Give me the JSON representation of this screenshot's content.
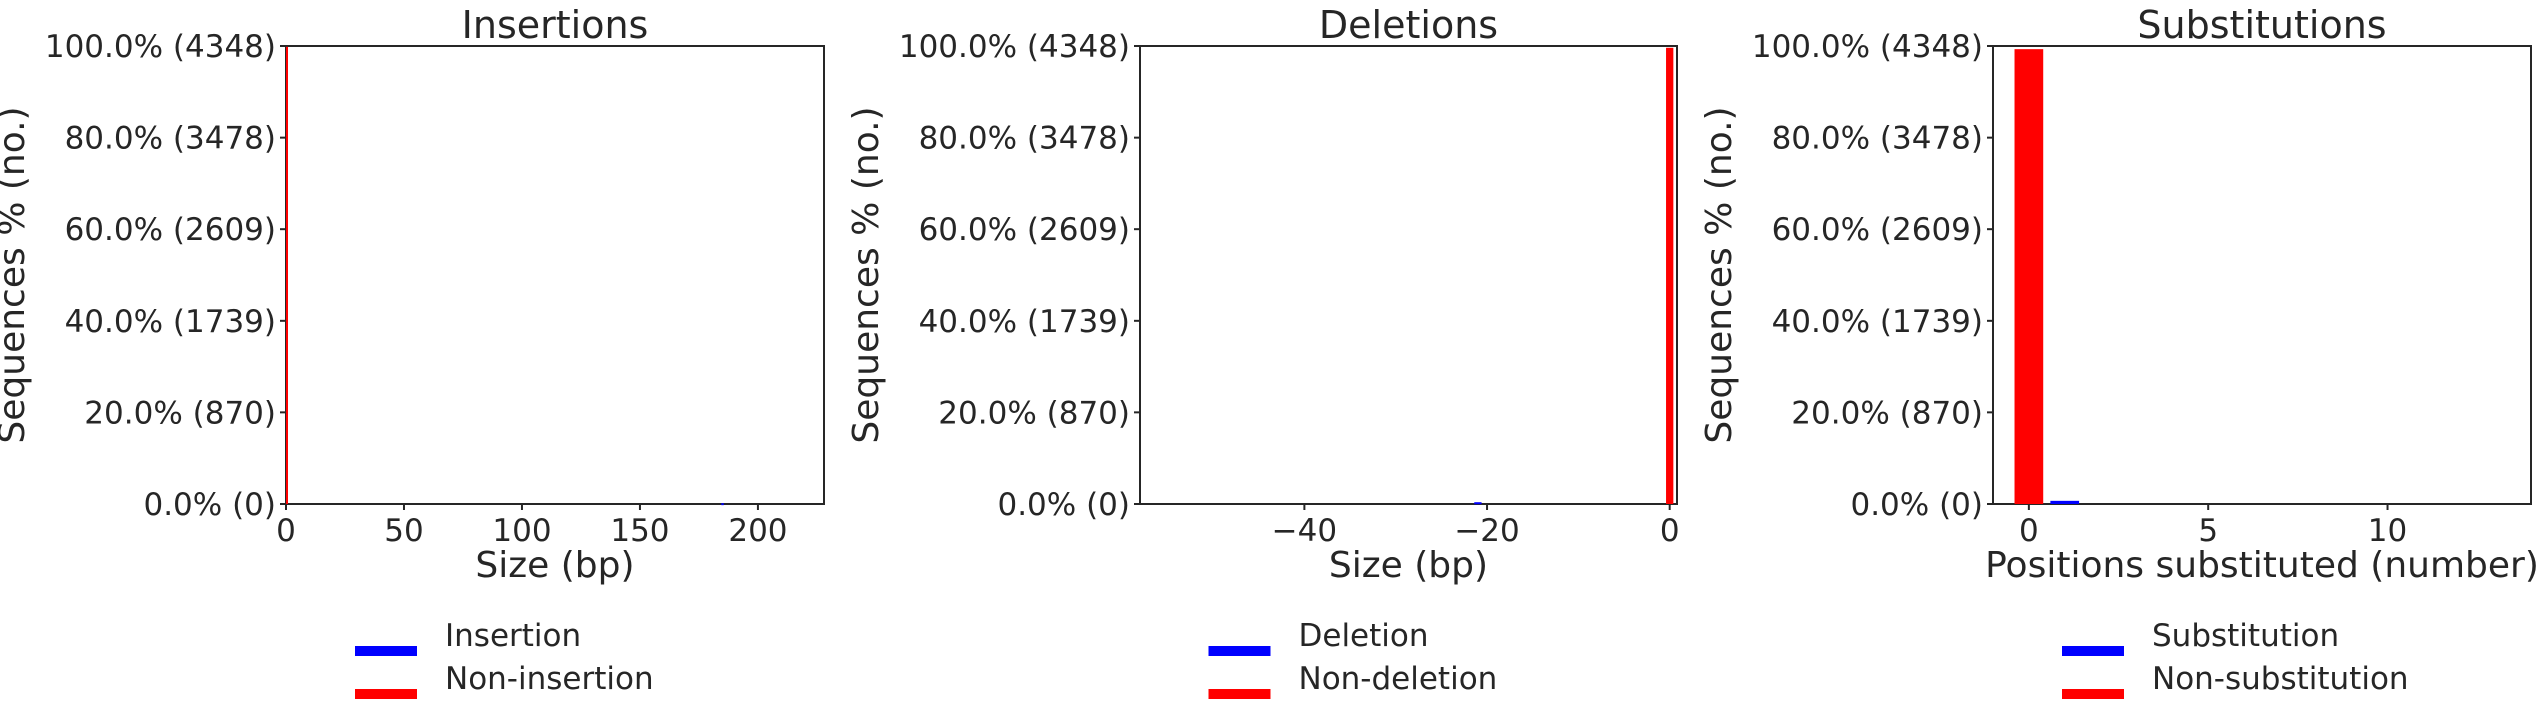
{
  "colors": {
    "event": "#0000ff",
    "non_event": "#ff0000",
    "axes": "#262626"
  },
  "chart_data": [
    {
      "type": "bar",
      "title": "Insertions",
      "xlabel": "Size (bp)",
      "ylabel": "Sequences % (no.)",
      "xlim": [
        0,
        228
      ],
      "ylim": [
        0,
        4348
      ],
      "xticks": [
        0,
        50,
        100,
        150,
        200
      ],
      "xtick_labels": [
        "0",
        "50",
        "100",
        "150",
        "200"
      ],
      "yticks": [
        0,
        870,
        1739,
        2609,
        3478,
        4348
      ],
      "ytick_labels": [
        "0.0% (0)",
        "20.0% (870)",
        "40.0% (1739)",
        "60.0% (2609)",
        "80.0% (3478)",
        "100.0% (4348)"
      ],
      "bar_width": 1.0,
      "series": [
        {
          "name": "Insertion",
          "color": "#0000ff",
          "x": [
            185
          ],
          "values": [
            8
          ]
        },
        {
          "name": "Non-insertion",
          "color": "#ff0000",
          "x": [
            0
          ],
          "values": [
            4340
          ]
        }
      ],
      "legend": {
        "position": "below",
        "entries": [
          "Insertion",
          "Non-insertion"
        ]
      }
    },
    {
      "type": "bar",
      "title": "Deletions",
      "xlabel": "Size (bp)",
      "ylabel": "Sequences % (no.)",
      "xlim": [
        -58,
        0.8
      ],
      "ylim": [
        0,
        4348
      ],
      "xticks": [
        -40,
        -20,
        0
      ],
      "xtick_labels": [
        "−40",
        "−20",
        "0"
      ],
      "yticks": [
        0,
        870,
        1739,
        2609,
        3478,
        4348
      ],
      "ytick_labels": [
        "0.0% (0)",
        "20.0% (870)",
        "40.0% (1739)",
        "60.0% (2609)",
        "80.0% (3478)",
        "100.0% (4348)"
      ],
      "bar_width": 0.8,
      "series": [
        {
          "name": "Deletion",
          "color": "#0000ff",
          "x": [
            -21
          ],
          "values": [
            17
          ]
        },
        {
          "name": "Non-deletion",
          "color": "#ff0000",
          "x": [
            0
          ],
          "values": [
            4331
          ]
        }
      ],
      "legend": {
        "position": "below",
        "entries": [
          "Deletion",
          "Non-deletion"
        ]
      }
    },
    {
      "type": "bar",
      "title": "Substitutions",
      "xlabel": "Positions substituted (number)",
      "ylabel": "Sequences % (no.)",
      "xlim": [
        -1,
        14
      ],
      "ylim": [
        0,
        4348
      ],
      "xticks": [
        0,
        5,
        10
      ],
      "xtick_labels": [
        "0",
        "5",
        "10"
      ],
      "yticks": [
        0,
        870,
        1739,
        2609,
        3478,
        4348
      ],
      "ytick_labels": [
        "0.0% (0)",
        "20.0% (870)",
        "40.0% (1739)",
        "60.0% (2609)",
        "80.0% (3478)",
        "100.0% (4348)"
      ],
      "bar_width": 0.8,
      "series": [
        {
          "name": "Substitution",
          "color": "#0000ff",
          "x": [
            1
          ],
          "values": [
            30
          ]
        },
        {
          "name": "Non-substitution",
          "color": "#ff0000",
          "x": [
            0
          ],
          "values": [
            4318
          ]
        }
      ],
      "legend": {
        "position": "below",
        "entries": [
          "Substitution",
          "Non-substitution"
        ]
      }
    }
  ]
}
